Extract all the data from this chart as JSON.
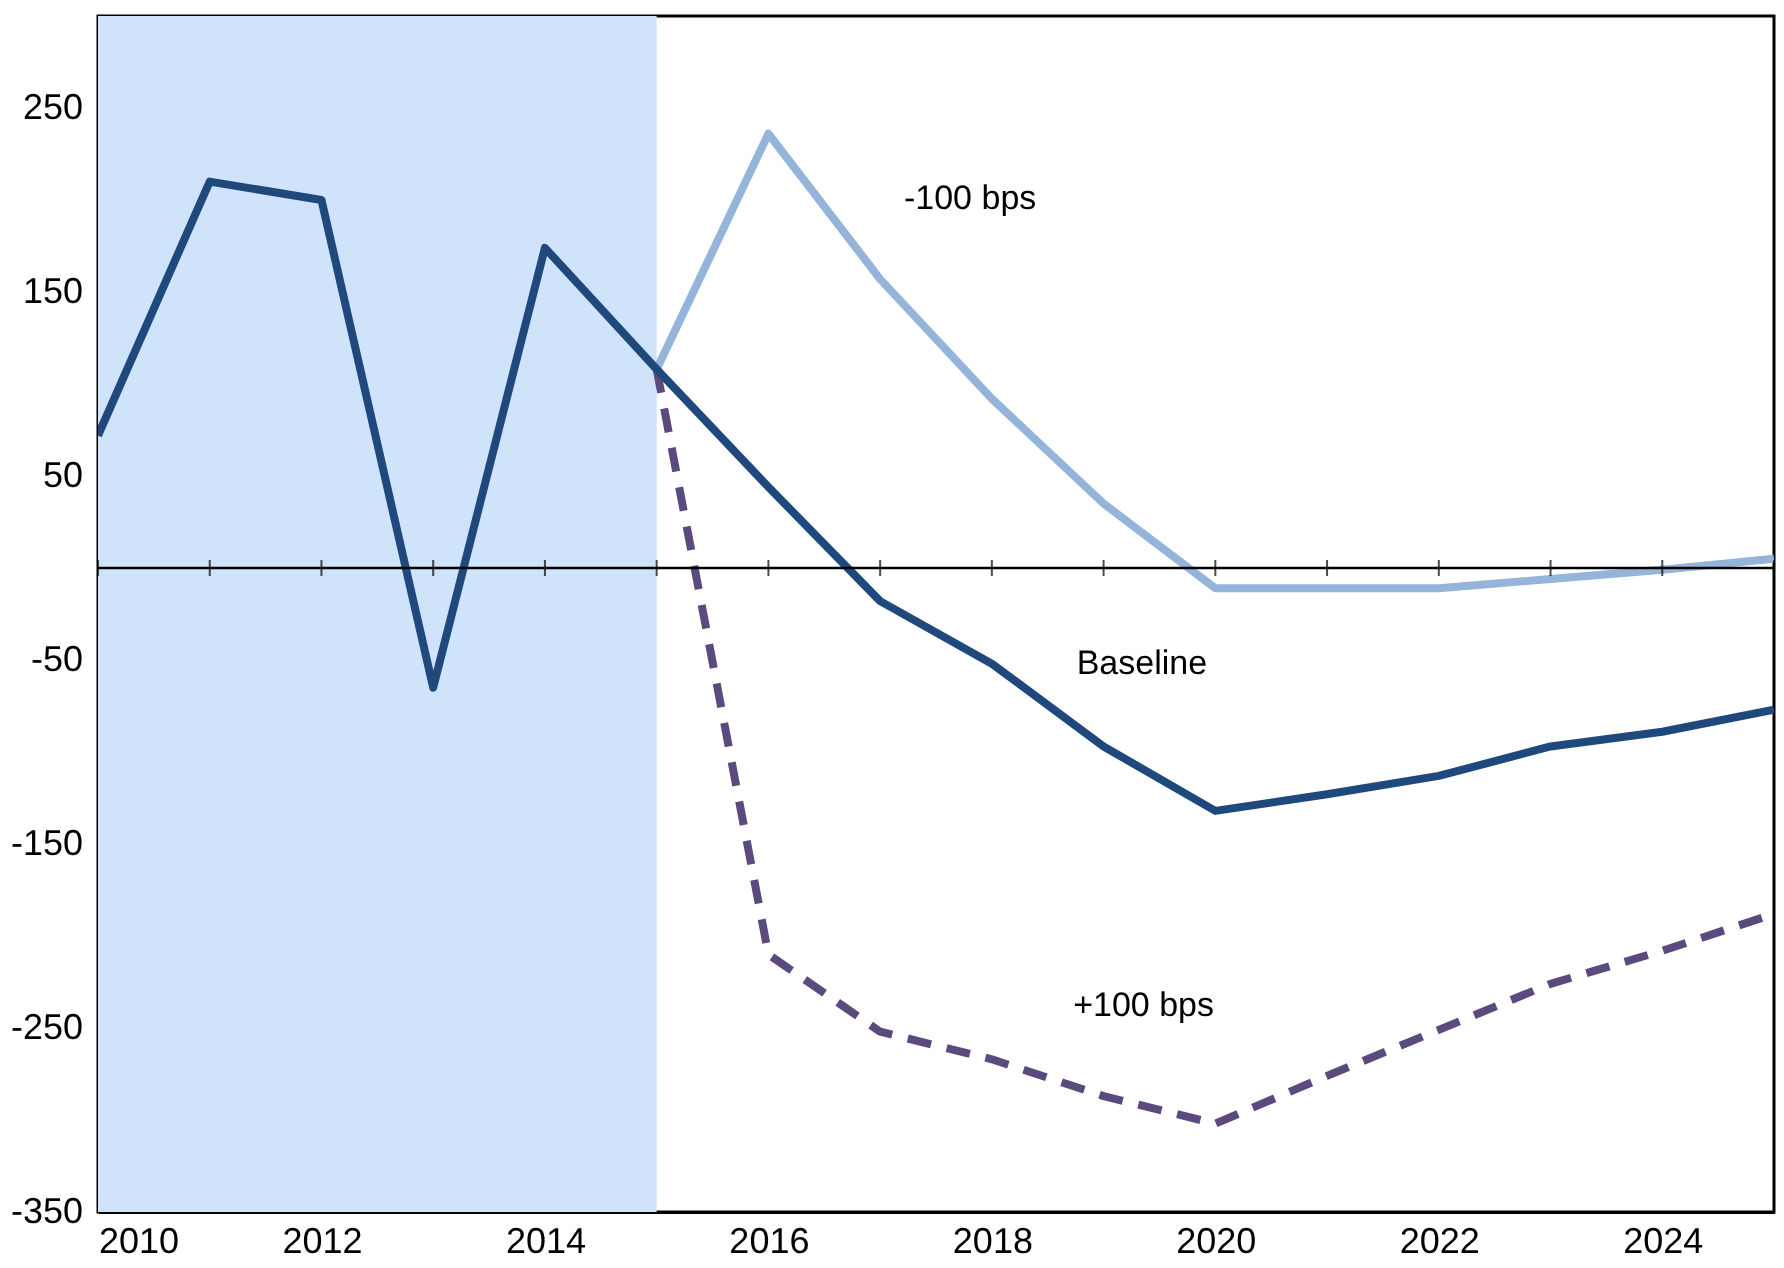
{
  "chart_data": {
    "type": "line",
    "x": [
      2010,
      2011,
      2012,
      2013,
      2014,
      2015,
      2016,
      2017,
      2018,
      2019,
      2020,
      2021,
      2022,
      2023,
      2024,
      2025
    ],
    "series": [
      {
        "name": "-100 bps",
        "color": "#94b4da",
        "line_style": "solid",
        "x": [
          2015,
          2016,
          2017,
          2018,
          2019,
          2020,
          2021,
          2022,
          2023,
          2024,
          2025
        ],
        "values": [
          108,
          236,
          157,
          92,
          35,
          -11,
          -11,
          -11,
          -6,
          -1,
          5
        ]
      },
      {
        "name": "+100 bps",
        "color": "#5b4a7e",
        "line_style": "dashed",
        "x": [
          2015,
          2016,
          2017,
          2018,
          2019,
          2020,
          2021,
          2022,
          2023,
          2024,
          2025
        ],
        "values": [
          108,
          -210,
          -252,
          -267,
          -287,
          -302,
          -276,
          -251,
          -226,
          -208,
          -188
        ]
      },
      {
        "name": "Baseline",
        "color": "#1f497d",
        "line_style": "solid",
        "values": [
          72,
          210,
          200,
          -65,
          174,
          108,
          44,
          -18,
          -52,
          -97,
          -132,
          -123,
          -113,
          -97,
          -89,
          -77
        ]
      }
    ],
    "xlim": [
      2010,
      2025
    ],
    "xticks": [
      2010,
      2012,
      2014,
      2016,
      2018,
      2020,
      2022,
      2024
    ],
    "ylim": [
      -350,
      300
    ],
    "yticks": [
      -350,
      -250,
      -150,
      -50,
      50,
      150,
      250
    ],
    "grid": false,
    "legend": false,
    "marker": "none",
    "ref_lines": [
      {
        "axis": "y",
        "value": 0,
        "color": "#000000"
      }
    ],
    "bands": [
      {
        "axis": "x",
        "from": 2010,
        "to": 2015,
        "color": "#cfe4fb"
      }
    ]
  }
}
